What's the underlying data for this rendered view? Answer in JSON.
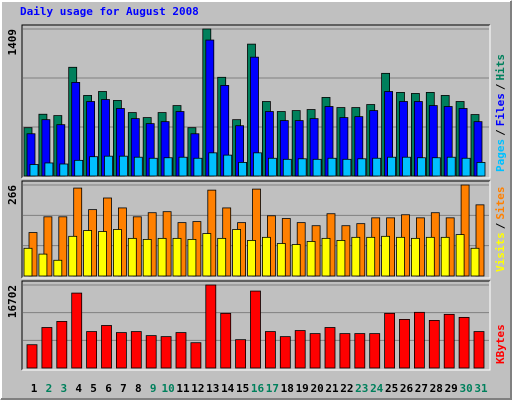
{
  "title": "Daily usage for August 2008",
  "legend_separator": "/",
  "chart_data": [
    {
      "type": "bar",
      "categories": [
        "1",
        "2",
        "3",
        "4",
        "5",
        "6",
        "7",
        "8",
        "9",
        "10",
        "11",
        "12",
        "13",
        "14",
        "15",
        "16",
        "17",
        "18",
        "19",
        "20",
        "21",
        "22",
        "23",
        "24",
        "25",
        "26",
        "27",
        "28",
        "29",
        "30",
        "31"
      ],
      "category_colors": [
        "#000000",
        "#00805c",
        "#00805c",
        "#000000",
        "#000000",
        "#000000",
        "#000000",
        "#000000",
        "#00805c",
        "#00805c",
        "#000000",
        "#000000",
        "#000000",
        "#000000",
        "#000000",
        "#00805c",
        "#00805c",
        "#000000",
        "#000000",
        "#000000",
        "#000000",
        "#000000",
        "#00805c",
        "#00805c",
        "#000000",
        "#000000",
        "#000000",
        "#000000",
        "#000000",
        "#00805c",
        "#00805c"
      ],
      "ylim": [
        0,
        1409
      ],
      "yticks": [
        1409
      ],
      "series": [
        {
          "name": "Hits",
          "color": "#00805c",
          "values": [
            463,
            592,
            579,
            1042,
            772,
            810,
            724,
            608,
            560,
            608,
            675,
            463,
            1409,
            946,
            540,
            1264,
            714,
            618,
            627,
            637,
            753,
            656,
            656,
            685,
            984,
            801,
            791,
            801,
            772,
            714,
            589
          ]
        },
        {
          "name": "Files",
          "color": "#0000ff",
          "values": [
            405,
            540,
            492,
            897,
            714,
            733,
            647,
            550,
            502,
            521,
            618,
            405,
            1303,
            868,
            482,
            1139,
            618,
            531,
            531,
            550,
            666,
            560,
            569,
            627,
            810,
            714,
            714,
            675,
            666,
            647,
            521
          ]
        },
        {
          "name": "Pages",
          "color": "#00c0ff",
          "values": [
            110,
            125,
            115,
            150,
            185,
            190,
            190,
            180,
            170,
            175,
            180,
            170,
            222,
            200,
            130,
            222,
            170,
            160,
            165,
            160,
            170,
            160,
            165,
            170,
            180,
            180,
            175,
            175,
            180,
            170,
            130
          ]
        }
      ]
    },
    {
      "type": "bar",
      "ylim": [
        0,
        266
      ],
      "yticks": [
        266
      ],
      "series": [
        {
          "name": "Sites",
          "color": "#ff8000",
          "values": [
            127,
            173,
            173,
            257,
            194,
            228,
            199,
            173,
            185,
            188,
            156,
            159,
            251,
            199,
            156,
            254,
            176,
            168,
            156,
            147,
            182,
            147,
            153,
            170,
            170,
            179,
            170,
            185,
            170,
            266,
            208
          ]
        },
        {
          "name": "Visits",
          "color": "#ffff00",
          "values": [
            81,
            64,
            46,
            116,
            133,
            130,
            136,
            110,
            107,
            110,
            110,
            107,
            124,
            110,
            136,
            104,
            113,
            95,
            92,
            101,
            110,
            104,
            113,
            113,
            116,
            113,
            110,
            113,
            113,
            121,
            81
          ]
        }
      ]
    },
    {
      "type": "bar",
      "ylim": [
        0,
        16702
      ],
      "yticks": [
        16702
      ],
      "series": [
        {
          "name": "KBytes",
          "color": "#ff0000",
          "values": [
            4685,
            8148,
            9370,
            15074,
            7333,
            8555,
            7129,
            7333,
            6518,
            6314,
            7129,
            5092,
            16702,
            11000,
            5703,
            15481,
            7333,
            6314,
            7537,
            6925,
            8148,
            6925,
            6925,
            6925,
            11000,
            9777,
            11203,
            9574,
            10796,
            10185,
            7333
          ]
        }
      ]
    }
  ]
}
